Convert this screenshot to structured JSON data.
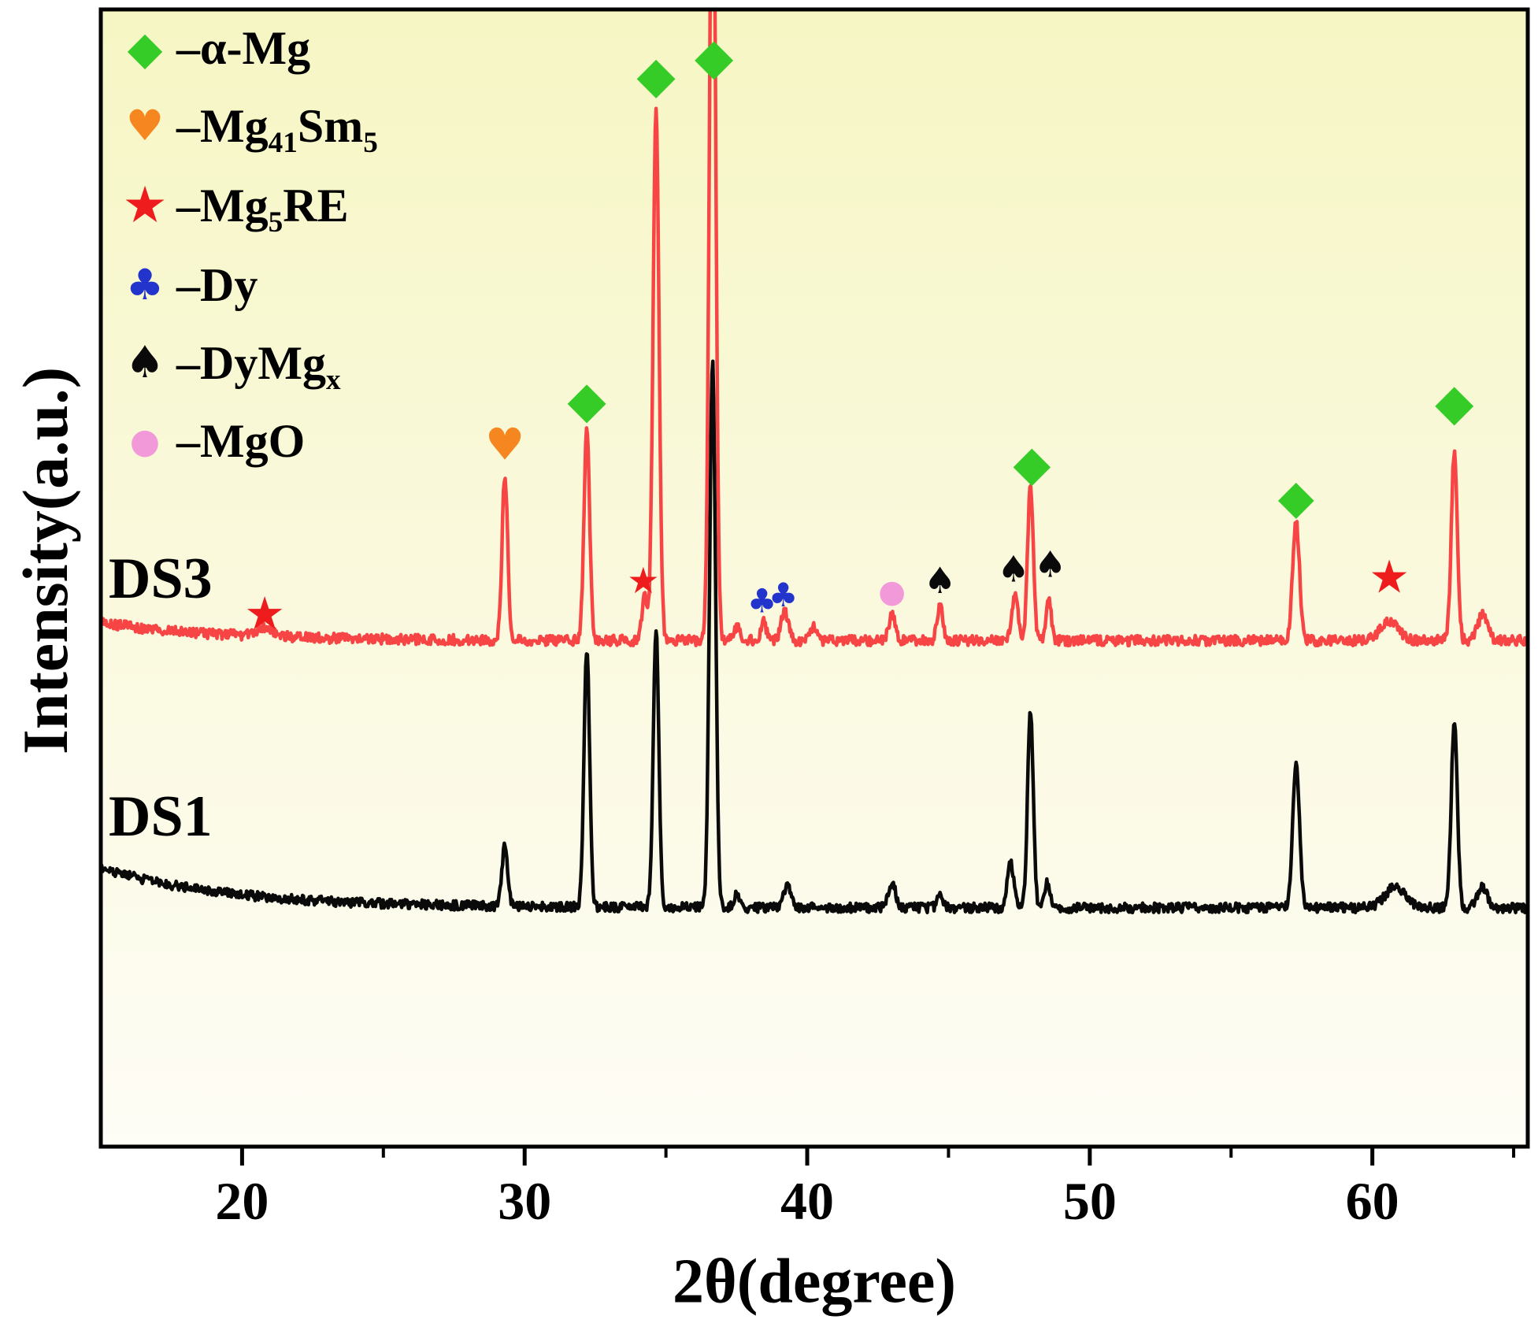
{
  "chart_data": {
    "type": "line",
    "title": "",
    "xlabel": "2θ(degree)",
    "ylabel": "Intensity(a.u.)",
    "x_ticks": [
      20,
      30,
      40,
      50,
      60
    ],
    "x_minor_ticks": [
      25,
      35,
      45,
      55,
      65
    ],
    "xlim": [
      15,
      65.5
    ],
    "grid": false,
    "legend_position": "top-left",
    "background": {
      "top": "#f6f6c4",
      "mid": "#faf9dd",
      "bottom": "#fefdf6"
    },
    "frame_color": "#000000",
    "legend": [
      {
        "symbol": "diamond",
        "color": "#35cc28",
        "segments": [
          {
            "t": "–α-Mg"
          }
        ]
      },
      {
        "symbol": "heart",
        "color": "#f6861f",
        "segments": [
          {
            "t": "–Mg"
          },
          {
            "t": "41",
            "sub": true
          },
          {
            "t": "Sm"
          },
          {
            "t": "5",
            "sub": true
          }
        ]
      },
      {
        "symbol": "star",
        "color": "#ee1c1c",
        "segments": [
          {
            "t": "–Mg"
          },
          {
            "t": "5",
            "sub": true
          },
          {
            "t": "RE"
          }
        ]
      },
      {
        "symbol": "club",
        "color": "#2234cc",
        "segments": [
          {
            "t": "–Dy"
          }
        ]
      },
      {
        "symbol": "spade",
        "color": "#0a0a0a",
        "segments": [
          {
            "t": "–DyMg"
          },
          {
            "t": "x",
            "sub": true
          }
        ]
      },
      {
        "symbol": "circle",
        "color": "#f29ad9",
        "segments": [
          {
            "t": "–MgO"
          }
        ]
      }
    ],
    "series": [
      {
        "name": "DS1",
        "color": "#0a0a0a",
        "baseline": 0.79,
        "noise": 0.0042,
        "seed": 1337,
        "drift": {
          "h": 0.035,
          "decay": 4.5
        },
        "label": {
          "text": "DS1",
          "x": 138,
          "y": 995
        },
        "peaks": [
          {
            "x": 29.3,
            "h": 0.055,
            "w": 0.14
          },
          {
            "x": 32.2,
            "h": 0.225,
            "w": 0.14
          },
          {
            "x": 34.65,
            "h": 0.245,
            "w": 0.14
          },
          {
            "x": 36.65,
            "h": 0.48,
            "w": 0.15
          },
          {
            "x": 37.5,
            "h": 0.012,
            "w": 0.15
          },
          {
            "x": 39.3,
            "h": 0.02,
            "w": 0.2
          },
          {
            "x": 43.0,
            "h": 0.022,
            "w": 0.18
          },
          {
            "x": 44.7,
            "h": 0.01,
            "w": 0.15
          },
          {
            "x": 47.2,
            "h": 0.04,
            "w": 0.16
          },
          {
            "x": 47.9,
            "h": 0.175,
            "w": 0.14
          },
          {
            "x": 48.5,
            "h": 0.022,
            "w": 0.13
          },
          {
            "x": 57.3,
            "h": 0.125,
            "w": 0.17
          },
          {
            "x": 60.8,
            "h": 0.018,
            "w": 0.5
          },
          {
            "x": 62.9,
            "h": 0.165,
            "w": 0.15
          },
          {
            "x": 63.9,
            "h": 0.018,
            "w": 0.25
          }
        ],
        "markers": []
      },
      {
        "name": "DS3",
        "color": "#f74545",
        "baseline": 0.555,
        "noise": 0.0045,
        "seed": 777,
        "drift": {
          "h": 0.016,
          "decay": 4.0
        },
        "label": {
          "text": "DS3",
          "x": 138,
          "y": 693
        },
        "peaks": [
          {
            "x": 20.8,
            "h": 0.008,
            "w": 0.45
          },
          {
            "x": 29.3,
            "h": 0.145,
            "w": 0.14
          },
          {
            "x": 32.2,
            "h": 0.185,
            "w": 0.14
          },
          {
            "x": 34.25,
            "h": 0.042,
            "w": 0.13
          },
          {
            "x": 34.65,
            "h": 0.465,
            "w": 0.15
          },
          {
            "x": 36.65,
            "h": 0.78,
            "w": 0.15
          },
          {
            "x": 37.5,
            "h": 0.012,
            "w": 0.15
          },
          {
            "x": 38.45,
            "h": 0.016,
            "w": 0.14
          },
          {
            "x": 39.2,
            "h": 0.026,
            "w": 0.18
          },
          {
            "x": 40.2,
            "h": 0.012,
            "w": 0.15
          },
          {
            "x": 43.0,
            "h": 0.022,
            "w": 0.16
          },
          {
            "x": 44.7,
            "h": 0.03,
            "w": 0.15
          },
          {
            "x": 47.35,
            "h": 0.04,
            "w": 0.15
          },
          {
            "x": 47.9,
            "h": 0.135,
            "w": 0.14
          },
          {
            "x": 48.55,
            "h": 0.035,
            "w": 0.13
          },
          {
            "x": 57.3,
            "h": 0.105,
            "w": 0.17
          },
          {
            "x": 60.6,
            "h": 0.016,
            "w": 0.45
          },
          {
            "x": 62.9,
            "h": 0.165,
            "w": 0.15
          },
          {
            "x": 63.9,
            "h": 0.022,
            "w": 0.25
          }
        ],
        "markers": [
          {
            "x": 20.8,
            "y": 0.531,
            "symbol": "star",
            "color": "#ee1c1c",
            "size": 58
          },
          {
            "x": 29.3,
            "y": 0.383,
            "symbol": "heart",
            "color": "#f6861f",
            "size": 56
          },
          {
            "x": 32.2,
            "y": 0.344,
            "symbol": "diamond",
            "color": "#35cc28",
            "size": 64
          },
          {
            "x": 34.2,
            "y": 0.502,
            "symbol": "star",
            "color": "#ee1c1c",
            "size": 46
          },
          {
            "x": 34.65,
            "y": 0.058,
            "symbol": "diamond",
            "color": "#35cc28",
            "size": 64
          },
          {
            "x": 36.7,
            "y": 0.042,
            "symbol": "diamond",
            "color": "#35cc28",
            "size": 64
          },
          {
            "x": 38.4,
            "y": 0.52,
            "symbol": "club",
            "color": "#2234cc",
            "size": 42
          },
          {
            "x": 39.15,
            "y": 0.515,
            "symbol": "club",
            "color": "#2234cc",
            "size": 42
          },
          {
            "x": 43.0,
            "y": 0.512,
            "symbol": "circle",
            "color": "#f29ad9",
            "size": 40
          },
          {
            "x": 44.7,
            "y": 0.502,
            "symbol": "spade",
            "color": "#0a0a0a",
            "size": 46
          },
          {
            "x": 47.3,
            "y": 0.492,
            "symbol": "spade",
            "color": "#0a0a0a",
            "size": 46
          },
          {
            "x": 47.95,
            "y": 0.399,
            "symbol": "diamond",
            "color": "#35cc28",
            "size": 62
          },
          {
            "x": 48.6,
            "y": 0.488,
            "symbol": "spade",
            "color": "#0a0a0a",
            "size": 46
          },
          {
            "x": 57.3,
            "y": 0.429,
            "symbol": "diamond",
            "color": "#35cc28",
            "size": 60
          },
          {
            "x": 60.6,
            "y": 0.499,
            "symbol": "star",
            "color": "#ee1c1c",
            "size": 58
          },
          {
            "x": 62.9,
            "y": 0.346,
            "symbol": "diamond",
            "color": "#35cc28",
            "size": 64
          }
        ]
      }
    ]
  }
}
